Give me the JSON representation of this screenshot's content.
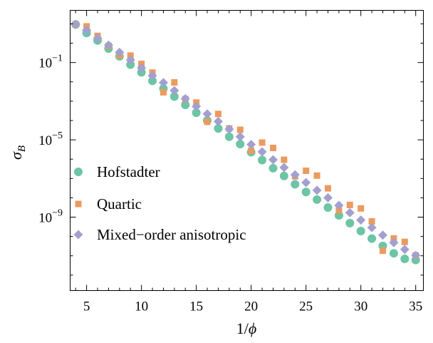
{
  "chart_data": {
    "type": "scatter",
    "xlabel": "1/ϕ",
    "ylabel": "σ_B",
    "xlim": [
      3.5,
      35.7
    ],
    "ylim_log10": [
      -12.8,
      1.7
    ],
    "y_scale": "log",
    "x_ticks": [
      5,
      10,
      15,
      20,
      25,
      30,
      35
    ],
    "y_ticks": [
      {
        "exp": -1,
        "label_base": "10",
        "label_exp": "−1"
      },
      {
        "exp": -5,
        "label_base": "10",
        "label_exp": "−5"
      },
      {
        "exp": -9,
        "label_base": "10",
        "label_exp": "−9"
      }
    ],
    "grid": false,
    "legend_position": "lower-left",
    "series": [
      {
        "name": "Hofstadter",
        "marker": "circle",
        "color": "#6cc5a4",
        "x": [
          4,
          5,
          6,
          7,
          8,
          9,
          10,
          11,
          12,
          13,
          14,
          15,
          16,
          17,
          18,
          19,
          20,
          21,
          22,
          23,
          24,
          25,
          26,
          27,
          28,
          29,
          30,
          31,
          32,
          33,
          34,
          35
        ],
        "log10_y": [
          0.97,
          0.53,
          0.14,
          -0.28,
          -0.68,
          -1.11,
          -1.51,
          -1.95,
          -2.35,
          -2.76,
          -3.19,
          -3.6,
          -4.0,
          -4.41,
          -4.84,
          -5.22,
          -5.64,
          -6.05,
          -6.47,
          -6.87,
          -7.3,
          -7.7,
          -8.09,
          -8.5,
          -8.91,
          -9.31,
          -9.72,
          -10.11,
          -10.49,
          -10.87,
          -11.16,
          -11.22
        ]
      },
      {
        "name": "Quartic",
        "marker": "square",
        "color": "#ec9a5e",
        "x": [
          4,
          5,
          6,
          7,
          8,
          9,
          10,
          11,
          12,
          13,
          14,
          15,
          16,
          17,
          18,
          19,
          20,
          21,
          22,
          23,
          24,
          25,
          26,
          27,
          28,
          29,
          30,
          31,
          32,
          33,
          34,
          35
        ],
        "log10_y": [
          0.97,
          0.87,
          0.38,
          -0.14,
          -0.63,
          -0.64,
          -1.07,
          -1.52,
          -2.54,
          -2.03,
          -2.89,
          -3.07,
          -4.07,
          -3.66,
          -4.41,
          -4.48,
          -5.56,
          -5.14,
          -5.42,
          -6.03,
          -6.89,
          -6.6,
          -6.85,
          -7.51,
          -8.65,
          -8.37,
          -8.55,
          -9.22,
          -10.74,
          -10.1,
          -10.28,
          -10.98
        ]
      },
      {
        "name": "Mixed−order anisotropic",
        "marker": "diamond",
        "color": "#a3a0d0",
        "x": [
          4,
          5,
          6,
          7,
          8,
          9,
          10,
          11,
          12,
          13,
          14,
          15,
          16,
          17,
          18,
          19,
          20,
          21,
          22,
          23,
          24,
          25,
          26,
          27,
          28,
          29,
          30,
          31,
          32,
          33,
          34,
          35
        ],
        "log10_y": [
          0.97,
          0.67,
          0.26,
          -0.1,
          -0.47,
          -0.87,
          -1.28,
          -1.68,
          -2.04,
          -2.45,
          -2.87,
          -3.27,
          -3.66,
          -4.05,
          -4.45,
          -4.84,
          -5.24,
          -5.62,
          -6.03,
          -6.43,
          -6.81,
          -7.21,
          -7.61,
          -8.0,
          -8.39,
          -8.77,
          -9.15,
          -9.54,
          -9.93,
          -10.32,
          -10.67,
          -10.98
        ]
      }
    ]
  }
}
